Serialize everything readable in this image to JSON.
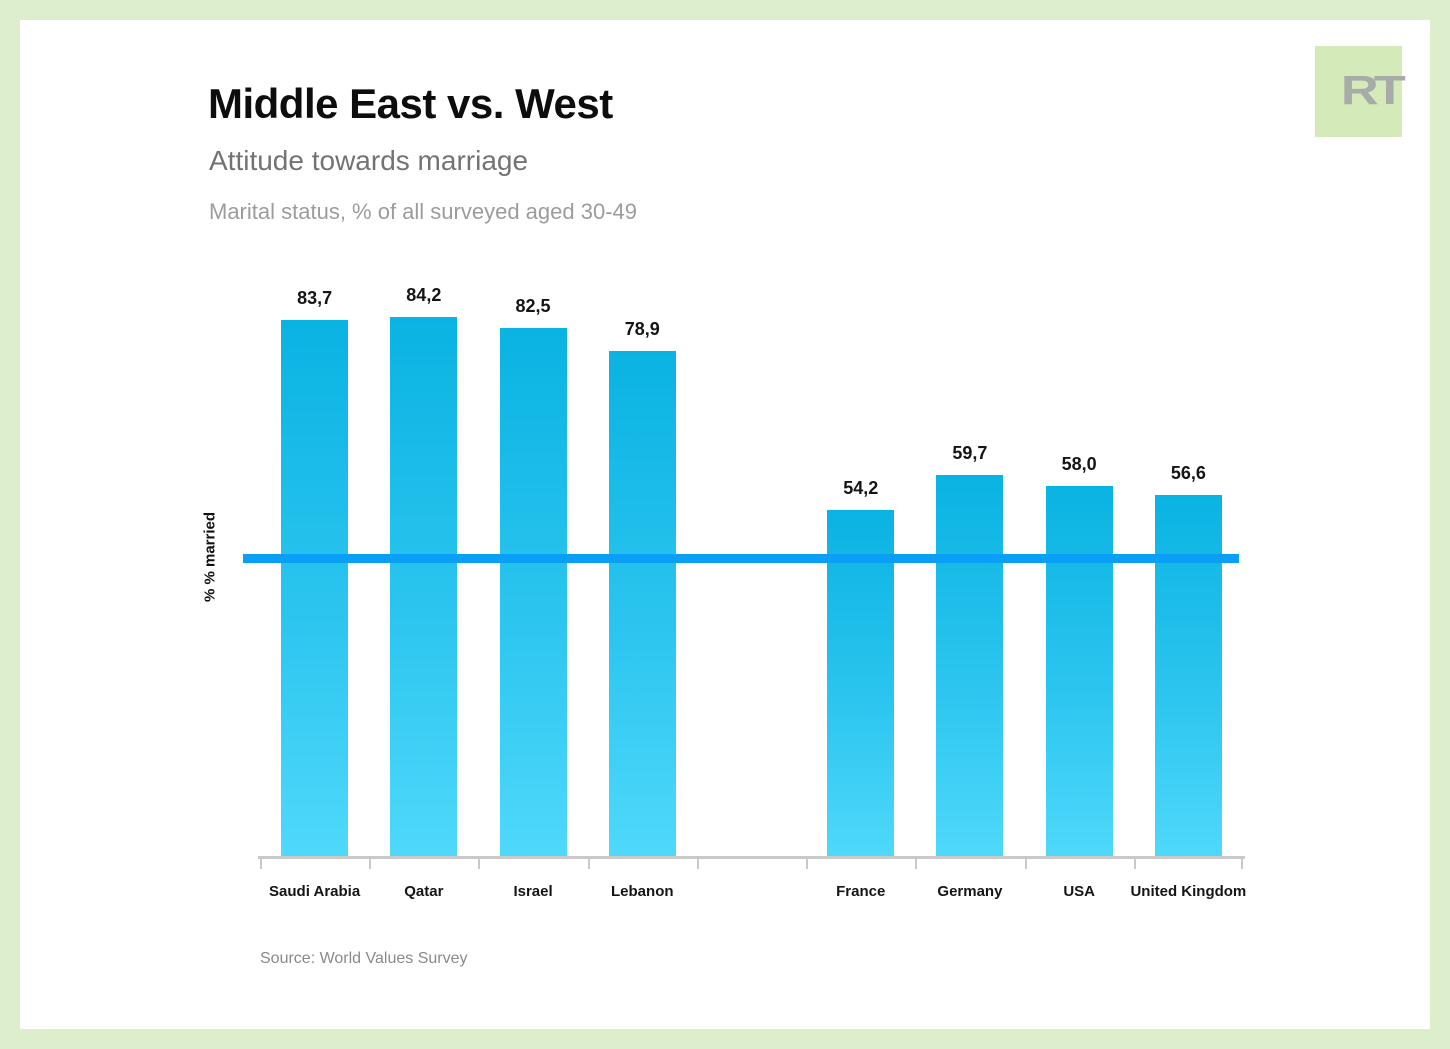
{
  "header": {
    "title": "Middle East vs. West",
    "subtitle": "Attitude towards marriage",
    "description": "Marital status, % of all surveyed aged 30-49"
  },
  "logo": {
    "text": "RT",
    "background_color": "#d4eab9",
    "text_color": "#a8aca9"
  },
  "chart_data": {
    "type": "bar",
    "categories": [
      "Saudi Arabia",
      "Qatar",
      "Israel",
      "Lebanon",
      "",
      "France",
      "Germany",
      "USA",
      "United Kingdom"
    ],
    "values": [
      83.7,
      84.2,
      82.5,
      78.9,
      null,
      54.2,
      59.7,
      58.0,
      56.6
    ],
    "value_labels": [
      "83,7",
      "84,2",
      "82,5",
      "78,9",
      "",
      "54,2",
      "59,7",
      "58,0",
      "56,6"
    ],
    "title": "Middle East vs. West",
    "xlabel": "",
    "ylabel": "% % married",
    "ylim": [
      0,
      90
    ],
    "grid": false,
    "legend": false,
    "bar_color_top": "#0ab3e2",
    "bar_color_bottom": "#4fd9fb",
    "reference_line": {
      "value_estimate": 46.7,
      "color": "#0a9ff6"
    },
    "axis_color": "#c9c9c9"
  },
  "footer": {
    "source": "Source: World Values Survey"
  }
}
